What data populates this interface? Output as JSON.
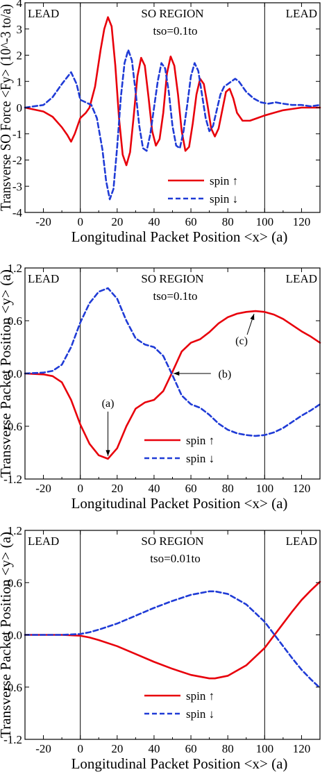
{
  "chart_data": [
    {
      "type": "line",
      "xlabel": "Longitudinal Packet Position <x> (a)",
      "ylabel": "Transverse SO Force <Fy> (10^-3 to/a)",
      "xlim": [
        -30,
        130
      ],
      "ylim": [
        -4,
        4
      ],
      "xticks": [
        -20,
        0,
        20,
        40,
        60,
        80,
        100,
        120
      ],
      "xtick_labels": [
        "-20",
        "0",
        "20",
        "40",
        "60",
        "80",
        "100",
        "120"
      ],
      "yticks": [
        -4,
        -3,
        -2,
        -1,
        0,
        1,
        2,
        3,
        4
      ],
      "ytick_labels": [
        "-4",
        "-3",
        "-2",
        "-1",
        "0",
        "1",
        "2",
        "3",
        "4"
      ],
      "region_labels": {
        "left": "LEAD",
        "center": "SO REGION",
        "right": "LEAD"
      },
      "tso_label": "tso=0.1to",
      "boundaries": [
        0,
        100
      ],
      "legend": {
        "placement": "bottom-right",
        "entries": [
          "spin ↑",
          "spin ↓"
        ]
      },
      "series": [
        {
          "name": "spin ↑",
          "color": "#e8000b",
          "style": "solid",
          "x": [
            -30,
            -20,
            -15,
            -10,
            -7,
            -5,
            -3,
            0,
            3,
            5,
            8,
            11,
            13,
            15,
            17,
            19,
            21,
            23,
            25,
            27,
            29,
            31,
            33,
            35,
            37,
            39,
            41,
            43,
            45,
            47,
            49,
            51,
            53,
            55,
            57,
            59,
            61,
            63,
            65,
            67,
            69,
            71,
            73,
            75,
            77,
            79,
            81,
            83,
            85,
            88,
            92,
            96,
            100,
            105,
            110,
            115,
            120,
            125,
            130
          ],
          "y": [
            0,
            -0.15,
            -0.35,
            -0.75,
            -1.05,
            -1.3,
            -1.0,
            -0.4,
            -0.2,
            0,
            0.8,
            2.2,
            3.0,
            3.45,
            3.1,
            1.6,
            -0.4,
            -1.8,
            -2.2,
            -1.7,
            -0.3,
            1.2,
            1.9,
            1.6,
            0.4,
            -0.9,
            -1.45,
            -1.2,
            -0.2,
            1.3,
            1.95,
            1.6,
            0.5,
            -0.9,
            -1.65,
            -1.5,
            -0.6,
            0.5,
            1.1,
            0.9,
            0.1,
            -0.8,
            -1.1,
            -0.8,
            -0.1,
            0.6,
            0.72,
            0.35,
            -0.2,
            -0.5,
            -0.5,
            -0.4,
            -0.3,
            -0.2,
            -0.1,
            -0.05,
            0,
            0,
            0
          ]
        },
        {
          "name": "spin ↓",
          "color": "#1f3bd6",
          "style": "dashed",
          "x": [
            -30,
            -20,
            -15,
            -10,
            -5,
            -2,
            0,
            3,
            6,
            9,
            12,
            14,
            16,
            18,
            20,
            22,
            24,
            26,
            28,
            30,
            32,
            34,
            36,
            38,
            40,
            42,
            44,
            46,
            48,
            50,
            52,
            54,
            56,
            58,
            60,
            62,
            64,
            66,
            68,
            70,
            72,
            74,
            76,
            78,
            80,
            82,
            84,
            86,
            88,
            90,
            94,
            98,
            102,
            106,
            110,
            115,
            120,
            125,
            130
          ],
          "y": [
            0,
            0.1,
            0.4,
            0.9,
            1.35,
            0.9,
            0.3,
            0.2,
            0.1,
            -0.4,
            -1.6,
            -2.8,
            -3.5,
            -3.1,
            -1.5,
            0.4,
            1.7,
            2.2,
            1.8,
            0.6,
            -0.7,
            -1.55,
            -1.65,
            -1.0,
            0,
            1.0,
            1.7,
            1.5,
            0.6,
            -0.7,
            -1.45,
            -1.55,
            -0.9,
            0.1,
            1.2,
            1.7,
            1.4,
            0.5,
            -0.4,
            -0.9,
            -0.7,
            -0.1,
            0.5,
            0.8,
            0.9,
            1.0,
            1.1,
            1.0,
            0.8,
            0.6,
            0.35,
            0.2,
            0.15,
            0.2,
            0.15,
            0.1,
            0.1,
            0.05,
            0.1
          ]
        }
      ]
    },
    {
      "type": "line",
      "xlabel": "Longitudinal Packet Position <x> (a)",
      "ylabel": "Transverse Packet Position <y> (a)",
      "xlim": [
        -30,
        130
      ],
      "ylim": [
        -1.2,
        1.2
      ],
      "xticks": [
        -20,
        0,
        20,
        40,
        60,
        80,
        100,
        120
      ],
      "xtick_labels": [
        "-20",
        "0",
        "20",
        "40",
        "60",
        "80",
        "100",
        "120"
      ],
      "yticks": [
        -1.2,
        -0.6,
        0,
        0.6,
        1.2
      ],
      "ytick_labels": [
        "-1.2",
        "-0.6",
        "0.0",
        "0.6",
        "1.2"
      ],
      "region_labels": {
        "left": "LEAD",
        "center": "SO REGION",
        "right": "LEAD"
      },
      "tso_label": "tso=0.1to",
      "boundaries": [
        0,
        100
      ],
      "legend": {
        "placement": "bottom-center",
        "entries": [
          "spin ↑",
          "spin ↓"
        ]
      },
      "annotations": [
        {
          "label": "(a)",
          "x": 15,
          "y": -0.97
        },
        {
          "label": "(b)",
          "x": 49,
          "y": 0
        },
        {
          "label": "(c)",
          "x": 95,
          "y": 0.71
        }
      ],
      "series": [
        {
          "name": "spin ↑",
          "color": "#e8000b",
          "style": "solid",
          "x": [
            -30,
            -20,
            -15,
            -10,
            -5,
            0,
            5,
            10,
            15,
            20,
            25,
            30,
            35,
            40,
            45,
            50,
            55,
            60,
            65,
            70,
            75,
            80,
            85,
            90,
            95,
            100,
            105,
            110,
            115,
            120,
            125,
            130
          ],
          "y": [
            0,
            -0.01,
            -0.03,
            -0.1,
            -0.3,
            -0.58,
            -0.8,
            -0.93,
            -0.97,
            -0.85,
            -0.6,
            -0.4,
            -0.33,
            -0.3,
            -0.2,
            0.02,
            0.25,
            0.35,
            0.39,
            0.47,
            0.57,
            0.64,
            0.68,
            0.7,
            0.71,
            0.7,
            0.67,
            0.62,
            0.55,
            0.48,
            0.42,
            0.35
          ]
        },
        {
          "name": "spin ↓",
          "color": "#1f3bd6",
          "style": "dashed",
          "x": [
            -30,
            -20,
            -15,
            -10,
            -5,
            0,
            5,
            10,
            15,
            20,
            25,
            30,
            35,
            40,
            45,
            50,
            55,
            60,
            65,
            70,
            75,
            80,
            85,
            90,
            95,
            100,
            105,
            110,
            115,
            120,
            125,
            130
          ],
          "y": [
            0,
            0.01,
            0.03,
            0.1,
            0.3,
            0.58,
            0.8,
            0.93,
            0.97,
            0.85,
            0.6,
            0.4,
            0.33,
            0.3,
            0.2,
            -0.02,
            -0.25,
            -0.35,
            -0.39,
            -0.47,
            -0.57,
            -0.64,
            -0.68,
            -0.7,
            -0.71,
            -0.7,
            -0.67,
            -0.62,
            -0.55,
            -0.48,
            -0.42,
            -0.35
          ]
        }
      ]
    },
    {
      "type": "line",
      "xlabel": "Longitudinal Packet Position <x> (a)",
      "ylabel": "Transverse Packet Position <y> (a)",
      "xlim": [
        -30,
        130
      ],
      "ylim": [
        -1.2,
        1.2
      ],
      "xticks": [
        -20,
        0,
        20,
        40,
        60,
        80,
        100,
        120
      ],
      "xtick_labels": [
        "-20",
        "0",
        "20",
        "40",
        "60",
        "80",
        "100",
        "120"
      ],
      "yticks": [
        -1.2,
        -0.6,
        0,
        0.6,
        1.2
      ],
      "ytick_labels": [
        "-1.2",
        "-0.6",
        "0.0",
        "0.6",
        "1.2"
      ],
      "region_labels": {
        "left": "LEAD",
        "center": "SO REGION",
        "right": "LEAD"
      },
      "tso_label": "tso=0.01to",
      "boundaries": [
        0,
        100
      ],
      "legend": {
        "placement": "bottom-center",
        "entries": [
          "spin ↑",
          "spin ↓"
        ]
      },
      "series": [
        {
          "name": "spin ↑",
          "color": "#e8000b",
          "style": "solid",
          "x": [
            -30,
            -20,
            -10,
            0,
            5,
            10,
            20,
            30,
            40,
            50,
            60,
            70,
            73,
            80,
            90,
            100,
            105,
            110,
            115,
            120,
            125,
            130
          ],
          "y": [
            0,
            0,
            0,
            -0.01,
            -0.03,
            -0.06,
            -0.13,
            -0.22,
            -0.31,
            -0.39,
            -0.46,
            -0.5,
            -0.5,
            -0.47,
            -0.35,
            -0.15,
            -0.01,
            0.13,
            0.27,
            0.4,
            0.51,
            0.61
          ]
        },
        {
          "name": "spin ↓",
          "color": "#1f3bd6",
          "style": "dashed",
          "x": [
            -30,
            -20,
            -10,
            0,
            5,
            10,
            20,
            30,
            40,
            50,
            60,
            70,
            73,
            80,
            90,
            100,
            105,
            110,
            115,
            120,
            125,
            130
          ],
          "y": [
            0,
            0,
            0,
            0.01,
            0.03,
            0.06,
            0.13,
            0.22,
            0.31,
            0.39,
            0.46,
            0.5,
            0.5,
            0.47,
            0.35,
            0.15,
            0.01,
            -0.13,
            -0.27,
            -0.4,
            -0.51,
            -0.61
          ]
        }
      ]
    }
  ]
}
